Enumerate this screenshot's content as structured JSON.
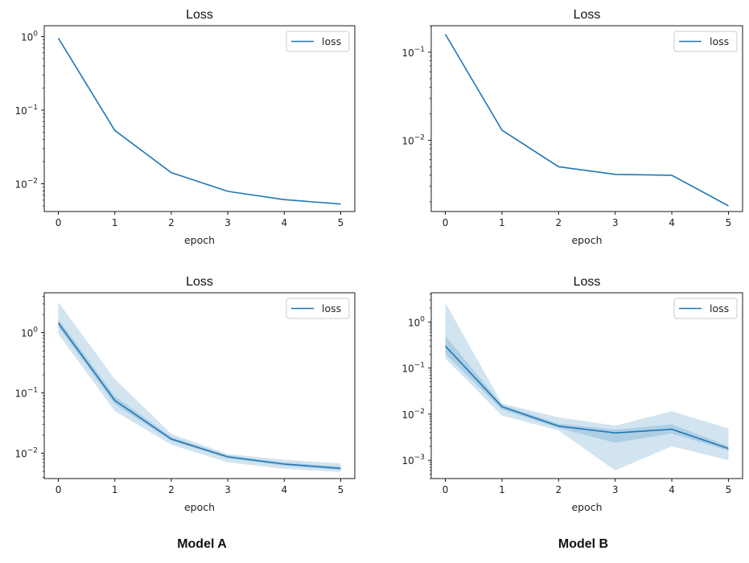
{
  "figure_labels": {
    "left": "Model A",
    "right": "Model B"
  },
  "colors": {
    "line": "#1f77b4",
    "band_outer": "#1f77b4",
    "band_inner": "#1f77b4"
  },
  "chart_data": [
    {
      "type": "line",
      "title": "Loss",
      "xlabel": "epoch",
      "ylabel": "",
      "yscale": "log",
      "legend": {
        "entries": [
          "loss"
        ],
        "location": "upper right"
      },
      "x": [
        0,
        1,
        2,
        3,
        4,
        5
      ],
      "xticks": [
        0,
        1,
        2,
        3,
        4,
        5
      ],
      "xlim": [
        -0.25,
        5.25
      ],
      "ylim": [
        0.0042,
        1.4
      ],
      "yticks": [
        {
          "value": 0.01,
          "base": "10",
          "exp": "−2"
        },
        {
          "value": 0.1,
          "base": "10",
          "exp": "−1"
        },
        {
          "value": 1,
          "base": "10",
          "exp": "0"
        }
      ],
      "series": [
        {
          "name": "loss",
          "values": [
            0.95,
            0.053,
            0.0142,
            0.0079,
            0.0061,
            0.0053
          ]
        }
      ]
    },
    {
      "type": "line",
      "title": "Loss",
      "xlabel": "epoch",
      "ylabel": "",
      "yscale": "log",
      "legend": {
        "entries": [
          "loss"
        ],
        "location": "upper right"
      },
      "x": [
        0,
        1,
        2,
        3,
        4,
        5
      ],
      "xticks": [
        0,
        1,
        2,
        3,
        4,
        5
      ],
      "xlim": [
        -0.25,
        5.25
      ],
      "ylim": [
        0.00155,
        0.2
      ],
      "yticks": [
        {
          "value": 0.01,
          "base": "10",
          "exp": "−2"
        },
        {
          "value": 0.1,
          "base": "10",
          "exp": "−1"
        }
      ],
      "series": [
        {
          "name": "loss",
          "values": [
            0.16,
            0.013,
            0.005,
            0.0041,
            0.004,
            0.0018
          ]
        }
      ]
    },
    {
      "type": "line",
      "title": "Loss",
      "xlabel": "epoch",
      "ylabel": "",
      "yscale": "log",
      "legend": {
        "entries": [
          "loss"
        ],
        "location": "upper right"
      },
      "x": [
        0,
        1,
        2,
        3,
        4,
        5
      ],
      "xticks": [
        0,
        1,
        2,
        3,
        4,
        5
      ],
      "xlim": [
        -0.25,
        5.25
      ],
      "ylim": [
        0.0038,
        4.6
      ],
      "yticks": [
        {
          "value": 0.01,
          "base": "10",
          "exp": "−2"
        },
        {
          "value": 0.1,
          "base": "10",
          "exp": "−1"
        },
        {
          "value": 1,
          "base": "10",
          "exp": "0"
        }
      ],
      "series": [
        {
          "name": "loss",
          "values": [
            1.45,
            0.075,
            0.0172,
            0.0087,
            0.0066,
            0.0056
          ],
          "band_outer_low": [
            0.95,
            0.05,
            0.0138,
            0.0071,
            0.0055,
            0.0049
          ],
          "band_outer_high": [
            3.2,
            0.17,
            0.021,
            0.0097,
            0.0078,
            0.0068
          ],
          "band_inner_low": [
            1.25,
            0.065,
            0.016,
            0.0082,
            0.0062,
            0.0053
          ],
          "band_inner_high": [
            1.7,
            0.088,
            0.0186,
            0.0092,
            0.007,
            0.006
          ]
        }
      ]
    },
    {
      "type": "line",
      "title": "Loss",
      "xlabel": "epoch",
      "ylabel": "",
      "yscale": "log",
      "legend": {
        "entries": [
          "loss"
        ],
        "location": "upper right"
      },
      "x": [
        0,
        1,
        2,
        3,
        4,
        5
      ],
      "xticks": [
        0,
        1,
        2,
        3,
        4,
        5
      ],
      "xlim": [
        -0.25,
        5.25
      ],
      "ylim": [
        0.0004,
        4.3
      ],
      "yticks": [
        {
          "value": 0.001,
          "base": "10",
          "exp": "−3"
        },
        {
          "value": 0.01,
          "base": "10",
          "exp": "−2"
        },
        {
          "value": 0.1,
          "base": "10",
          "exp": "−1"
        },
        {
          "value": 1,
          "base": "10",
          "exp": "0"
        }
      ],
      "series": [
        {
          "name": "loss",
          "values": [
            0.3,
            0.0145,
            0.0055,
            0.0039,
            0.0047,
            0.0018
          ],
          "band_outer_low": [
            0.16,
            0.0093,
            0.0044,
            0.0006,
            0.002,
            0.001
          ],
          "band_outer_high": [
            2.6,
            0.017,
            0.0085,
            0.0056,
            0.0115,
            0.0049
          ],
          "band_inner_low": [
            0.2,
            0.0125,
            0.005,
            0.0024,
            0.0038,
            0.0016
          ],
          "band_inner_high": [
            0.5,
            0.016,
            0.0062,
            0.0046,
            0.006,
            0.002
          ]
        }
      ]
    }
  ]
}
